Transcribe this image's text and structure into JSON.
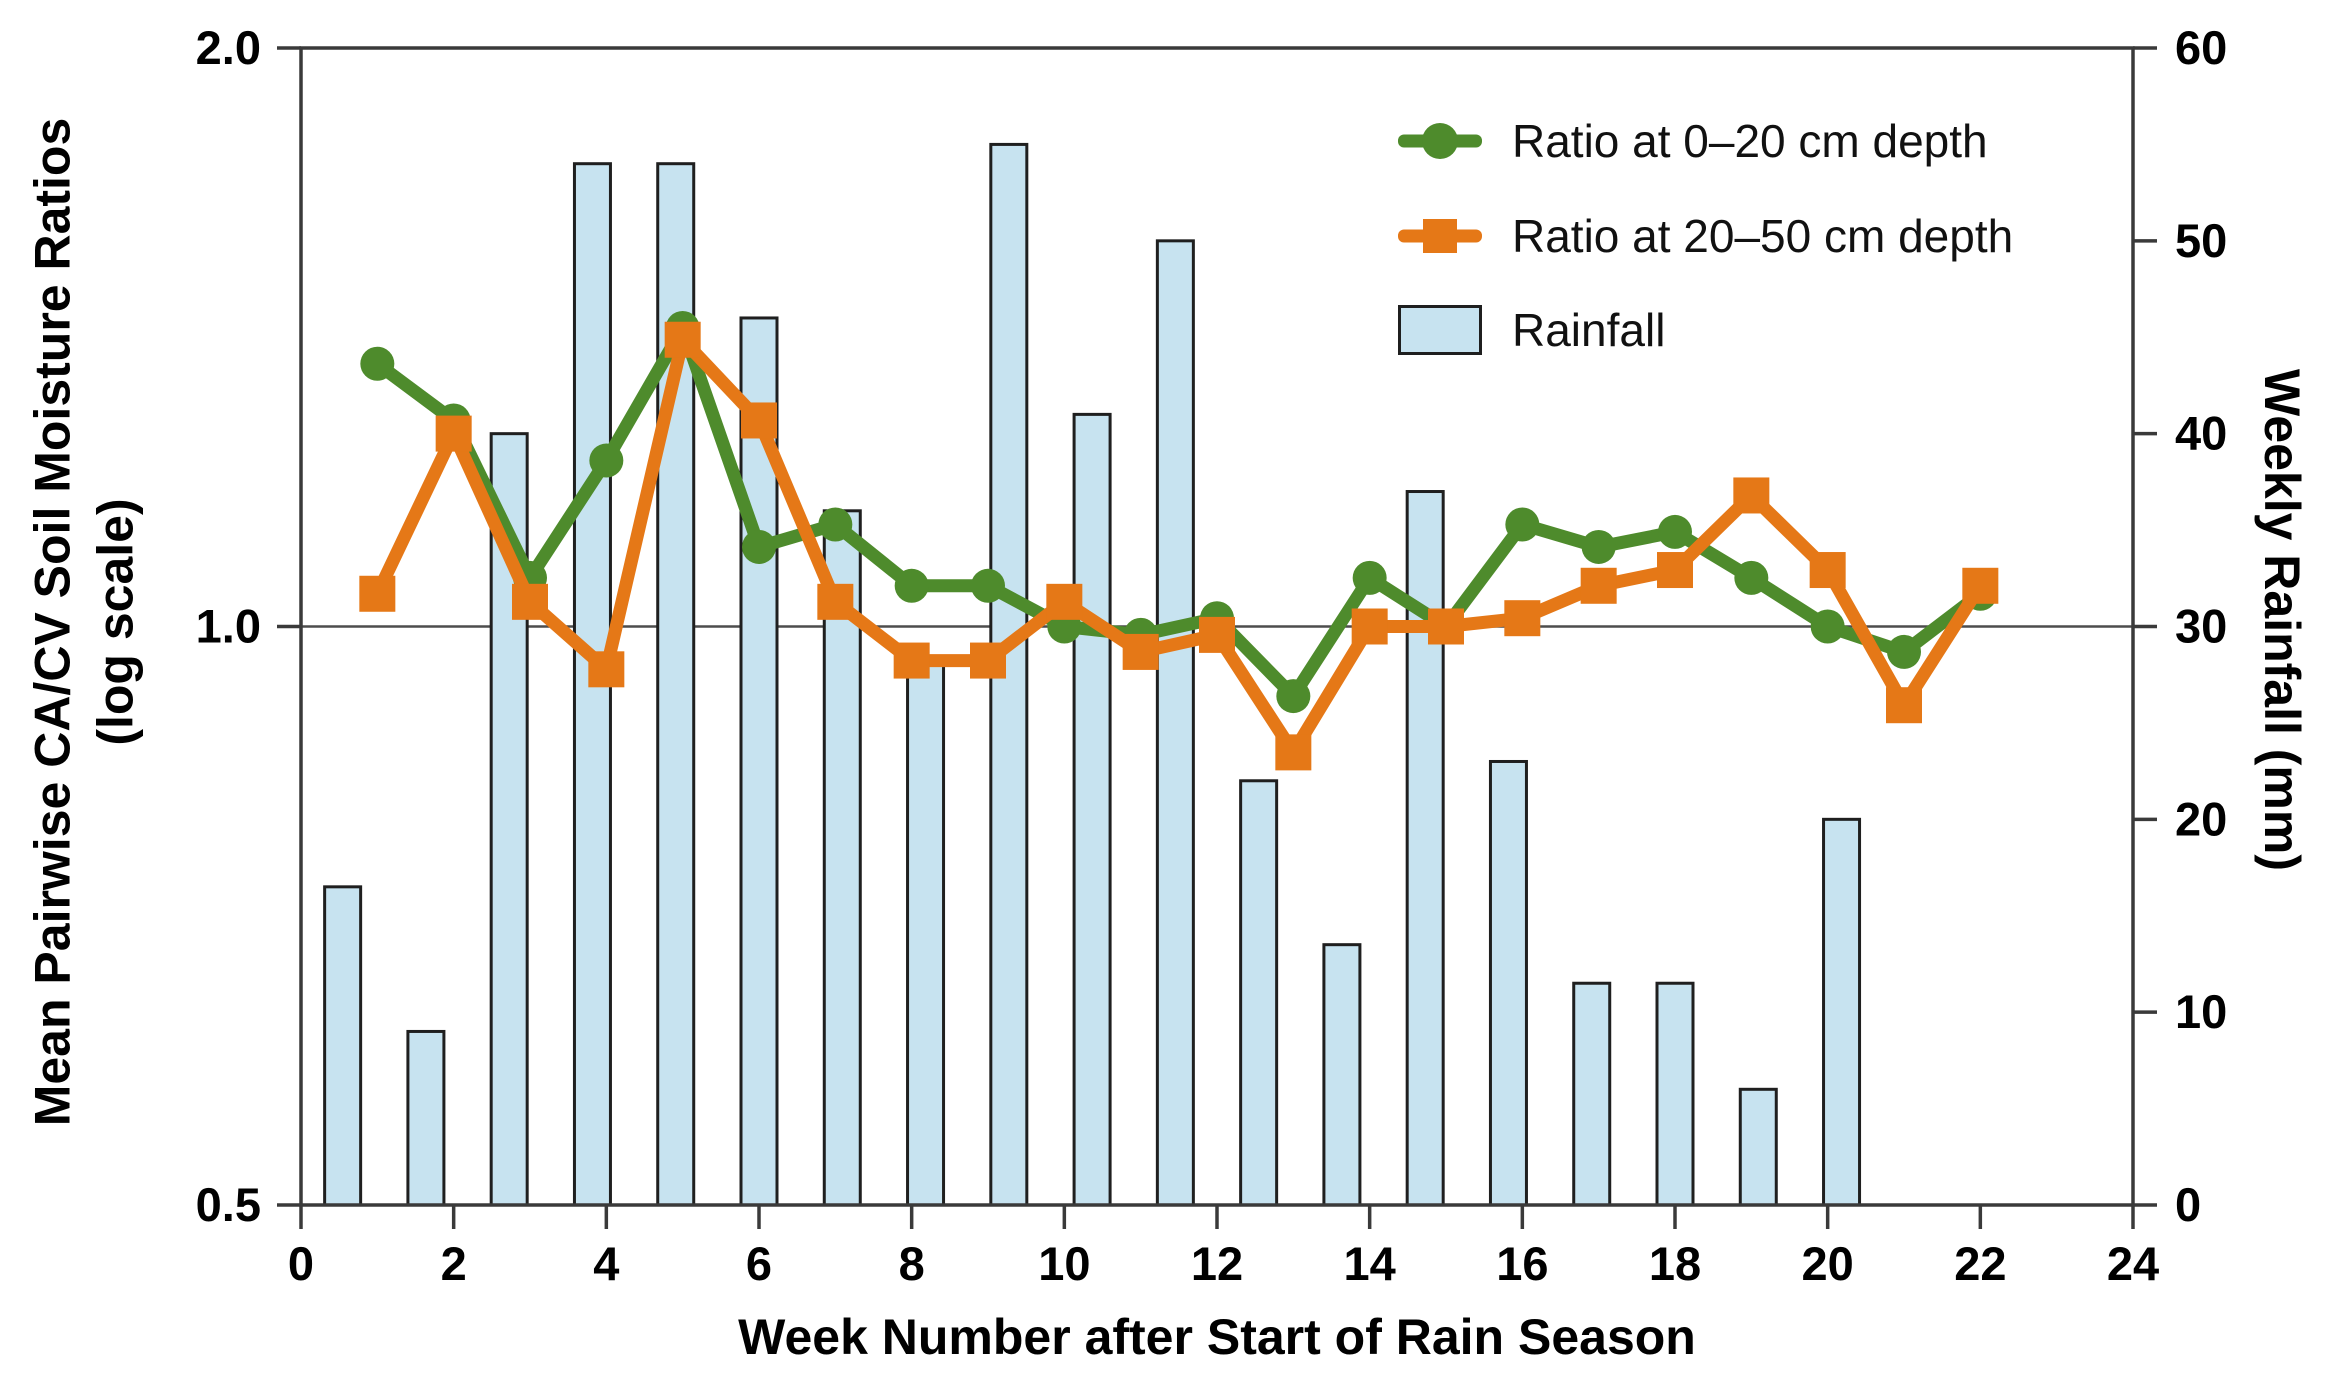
{
  "figure": {
    "x_axis_title": "Week Number after Start of Rain Season",
    "y_left_title": "Mean Pairwise CA/CV Soil Moisture Ratios\n(log scale)",
    "y_right_title": "Weekly Rainfall (mm)"
  },
  "legend": {
    "items": [
      {
        "label": "Ratio at 0–20 cm depth",
        "marker": "line-circle"
      },
      {
        "label": "Ratio at 20–50 cm depth",
        "marker": "line-square"
      },
      {
        "label": "Rainfall",
        "marker": "bar-swatch"
      }
    ]
  },
  "colors": {
    "green_line": "#4E8B2C",
    "orange_line": "#E57817",
    "bar_fill": "#C7E3F0",
    "bar_stroke": "#1F1F1F",
    "frame": "#3A3A3A",
    "gridline": "#4D4D4D",
    "text": "#000000"
  },
  "chart_data": {
    "type": "composite-bar-line",
    "x_axis": {
      "label": "Week Number after Start of Rain Season",
      "min": 0,
      "max": 24,
      "tick_labels": [
        "0",
        "2",
        "4",
        "6",
        "8",
        "10",
        "12",
        "14",
        "16",
        "18",
        "20",
        "22",
        "24"
      ]
    },
    "y_left_axis": {
      "label": "Mean Pairwise CA/CV Soil Moisture Ratios (log scale)",
      "scale": "log2",
      "min": 0.5,
      "max": 2.0,
      "ticks": [
        {
          "value": 2.0,
          "label": "2.0"
        },
        {
          "value": 1.0,
          "label": "1.0"
        },
        {
          "value": 0.5,
          "label": "0.5"
        }
      ],
      "gridline_at": 1.0
    },
    "y_right_axis": {
      "label": "Weekly Rainfall (mm)",
      "min": 0,
      "max": 60,
      "tick_labels": [
        "0",
        "10",
        "20",
        "30",
        "40",
        "50",
        "60"
      ]
    },
    "weeks": [
      1,
      2,
      3,
      4,
      5,
      6,
      7,
      8,
      9,
      10,
      11,
      12,
      13,
      14,
      15,
      16,
      17,
      18,
      19,
      20,
      21,
      22
    ],
    "series": [
      {
        "name": "Ratio at 0–20 cm depth",
        "type": "line",
        "marker": "circle",
        "axis": "left",
        "values": [
          1.37,
          1.28,
          1.06,
          1.22,
          1.43,
          1.1,
          1.13,
          1.05,
          1.05,
          1.0,
          0.99,
          1.01,
          0.92,
          1.06,
          1.0,
          1.13,
          1.1,
          1.12,
          1.06,
          1.0,
          0.97,
          1.04
        ]
      },
      {
        "name": "Ratio at 20–50 cm depth",
        "type": "line",
        "marker": "square",
        "axis": "left",
        "values": [
          1.04,
          1.26,
          1.03,
          0.95,
          1.41,
          1.28,
          1.03,
          0.96,
          0.96,
          1.03,
          0.97,
          0.99,
          0.86,
          1.0,
          1.0,
          1.01,
          1.05,
          1.07,
          1.17,
          1.07,
          0.91,
          1.05
        ]
      },
      {
        "name": "Rainfall",
        "type": "bar",
        "axis": "right",
        "values": [
          16.5,
          9,
          40,
          54,
          54,
          46,
          36,
          28,
          55,
          41,
          50,
          22,
          13.5,
          37,
          23,
          11.5,
          11.5,
          6,
          20,
          null,
          null,
          null
        ]
      }
    ]
  }
}
